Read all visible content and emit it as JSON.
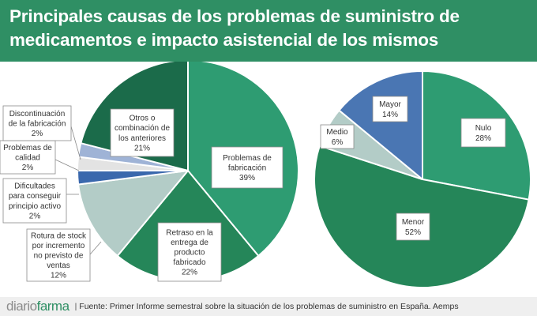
{
  "header": {
    "title_line1": "Principales causas de los problemas de suministro de",
    "title_line2": "medicamentos e impacto asistencial de los mismos"
  },
  "chart_data": [
    {
      "type": "pie",
      "title": "Principales causas de los problemas de suministro de medicamentos",
      "slices": [
        {
          "label": "Problemas de fabricación",
          "lines": [
            "Problemas de",
            "fabricación",
            "39%"
          ],
          "value": 39,
          "color": "#2e9c72"
        },
        {
          "label": "Retraso en la entrega de producto fabricado",
          "lines": [
            "Retraso en la",
            "entrega de",
            "producto",
            "fabricado",
            "22%"
          ],
          "value": 22,
          "color": "#258659"
        },
        {
          "label": "Rotura de stock por incremento no previsto de ventas",
          "lines": [
            "Rotura de stock",
            "por incremento",
            "no previsto de",
            "ventas",
            "12%"
          ],
          "value": 12,
          "color": "#b3ccc7"
        },
        {
          "label": "Dificultades para conseguir principio activo",
          "lines": [
            "Dificultades",
            "para conseguir",
            "principio activo",
            "2%"
          ],
          "value": 2,
          "color": "#3a68ad"
        },
        {
          "label": "Problemas de calidad",
          "lines": [
            "Problemas de",
            "calidad",
            "2%"
          ],
          "value": 2,
          "color": "#e3e3e3"
        },
        {
          "label": "Discontinuación de la fabricación",
          "lines": [
            "Discontinuación",
            "de la fabricación",
            "2%"
          ],
          "value": 2,
          "color": "#9fb3d6"
        },
        {
          "label": "Otros o combinación de los anteriores",
          "lines": [
            "Otros o",
            "combinación de",
            "los anteriores",
            "21%"
          ],
          "value": 21,
          "color": "#1b6b4a"
        }
      ]
    },
    {
      "type": "pie",
      "title": "Impacto asistencial",
      "slices": [
        {
          "label": "Nulo",
          "lines": [
            "Nulo",
            "28%"
          ],
          "value": 28,
          "color": "#2e9c72"
        },
        {
          "label": "Menor",
          "lines": [
            "Menor",
            "52%"
          ],
          "value": 52,
          "color": "#258659"
        },
        {
          "label": "Medio",
          "lines": [
            "Medio",
            "6%"
          ],
          "value": 6,
          "color": "#b3ccc7"
        },
        {
          "label": "Mayor",
          "lines": [
            "Mayor",
            "14%"
          ],
          "value": 14,
          "color": "#4a76b3"
        }
      ]
    }
  ],
  "footer": {
    "logo_part1": "diario",
    "logo_part2": "farma",
    "separator": "|",
    "source": "Fuente: Primer Informe semestral sobre la situación de los problemas de suministro en España. Aemps"
  }
}
